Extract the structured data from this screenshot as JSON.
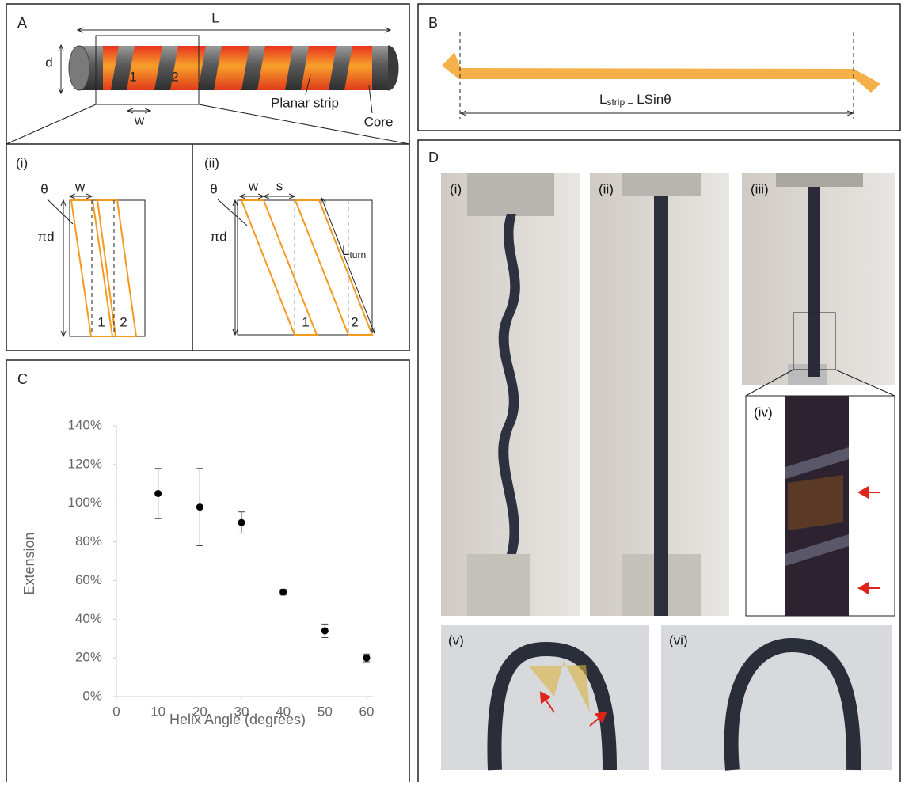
{
  "panel_a": {
    "label": "A",
    "length": "L",
    "diameter": "d",
    "width": "w",
    "strip_numbers": [
      "1",
      "2"
    ],
    "strip_label": "Planar strip",
    "core_label": "Core",
    "subpanels": [
      {
        "label": "(i)",
        "angle": "θ",
        "width": "w",
        "circumference": "πd",
        "strips": [
          "1",
          "2"
        ]
      },
      {
        "label": "(ii)",
        "angle": "θ",
        "width": "w",
        "spacing": "s",
        "circumference": "πd",
        "turn_length": "L",
        "turn_length_sub": "turn",
        "strips": [
          "1",
          "2"
        ]
      }
    ]
  },
  "panel_b": {
    "label": "B",
    "formula_main": "L",
    "formula_sub": "strip =",
    "formula_rest": " LSinθ"
  },
  "chart_data": {
    "type": "scatter",
    "label": "C",
    "x_label": "Helix Angle (degrees)",
    "y_label": "Extension",
    "x": [
      10,
      20,
      30,
      40,
      50,
      60
    ],
    "series": [
      {
        "values": [
          105,
          98,
          90,
          54,
          34,
          20
        ],
        "errors": [
          13,
          20,
          5.5,
          1.5,
          3.5,
          2
        ],
        "color": "#000000"
      }
    ],
    "xlim": [
      0,
      60
    ],
    "ylim": [
      0,
      140
    ],
    "xticks": [
      0,
      10,
      20,
      30,
      40,
      50,
      60
    ],
    "yticks": [
      {
        "value": 0,
        "label": "0%"
      },
      {
        "value": 20,
        "label": "20%"
      },
      {
        "value": 40,
        "label": "40%"
      },
      {
        "value": 60,
        "label": "60%"
      },
      {
        "value": 80,
        "label": "80%"
      },
      {
        "value": 100,
        "label": "100%"
      },
      {
        "value": 120,
        "label": "120%"
      },
      {
        "value": 140,
        "label": "140%"
      }
    ]
  },
  "panel_d": {
    "label": "D",
    "photos": [
      "(i)",
      "(ii)",
      "(iii)",
      "(iv)",
      "(v)",
      "(vi)"
    ]
  }
}
